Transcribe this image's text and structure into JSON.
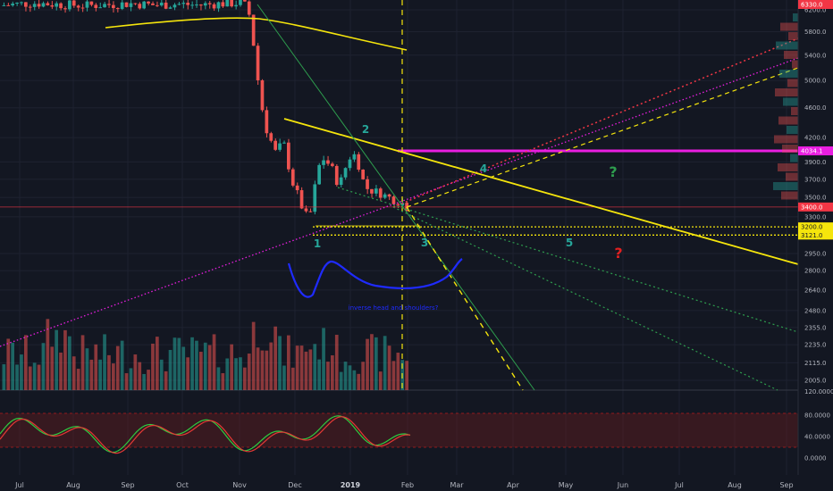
{
  "chart_data": {
    "type": "candlestick",
    "ylim": [
      2780,
      6500
    ],
    "y_scale": "log",
    "price_ticks": [
      "6200.0",
      "5800.0",
      "5400.0",
      "5000.0",
      "4600.0",
      "4200.0",
      "3900.0",
      "3700.0",
      "3500.0",
      "3300.0",
      "2950.0",
      "2800.0",
      "2640.0",
      "2480.0",
      "2355.0",
      "2235.0",
      "2115.0",
      "2005.0"
    ],
    "volume_axis_label": "120.0000",
    "stoch_ticks": [
      "80.0000",
      "40.0000",
      "0.0000"
    ],
    "x_ticks": [
      {
        "label": "Jul",
        "bold": false
      },
      {
        "label": "Aug",
        "bold": false
      },
      {
        "label": "Sep",
        "bold": false
      },
      {
        "label": "Oct",
        "bold": false
      },
      {
        "label": "Nov",
        "bold": false
      },
      {
        "label": "Dec",
        "bold": false
      },
      {
        "label": "2019",
        "bold": true
      },
      {
        "label": "Feb",
        "bold": false
      },
      {
        "label": "Mar",
        "bold": false
      },
      {
        "label": "Apr",
        "bold": false
      },
      {
        "label": "May",
        "bold": false
      },
      {
        "label": "Jun",
        "bold": false
      },
      {
        "label": "Jul",
        "bold": false
      },
      {
        "label": "Aug",
        "bold": false
      },
      {
        "label": "Sep",
        "bold": false
      }
    ],
    "price_tags": [
      {
        "value": "6330.0",
        "color": "#f23645"
      },
      {
        "value": "4034.1",
        "color": "#e91ee0"
      },
      {
        "value": "3400.0",
        "color": "#f23645"
      },
      {
        "value": "3200.0",
        "color": "#f5e50c"
      },
      {
        "value": "3121.0",
        "color": "#f5e50c"
      }
    ],
    "horizontal_levels": [
      {
        "value": 4034,
        "color": "#e91ee0"
      },
      {
        "value": 3400,
        "color": "#f23645"
      },
      {
        "value": 3200,
        "color": "#f5e50c"
      },
      {
        "value": 3121,
        "color": "#f5e50c"
      }
    ],
    "wave_labels": [
      {
        "text": "1",
        "color": "#26a69a"
      },
      {
        "text": "2",
        "color": "#26a69a"
      },
      {
        "text": "3",
        "color": "#26a69a"
      },
      {
        "text": "4",
        "color": "#26a69a"
      },
      {
        "text": "5",
        "color": "#26a69a"
      }
    ],
    "question_marks": [
      {
        "text": "?",
        "color": "#2e9d4e"
      },
      {
        "text": "?",
        "color": "#e02020"
      }
    ],
    "pattern_note": "inverse head and shoulders?",
    "colors": {
      "up": "#26a69a",
      "down": "#ef5350",
      "ma": "#f5e50c",
      "stoch_k": "#2ecc40",
      "stoch_d": "#e53935"
    }
  }
}
